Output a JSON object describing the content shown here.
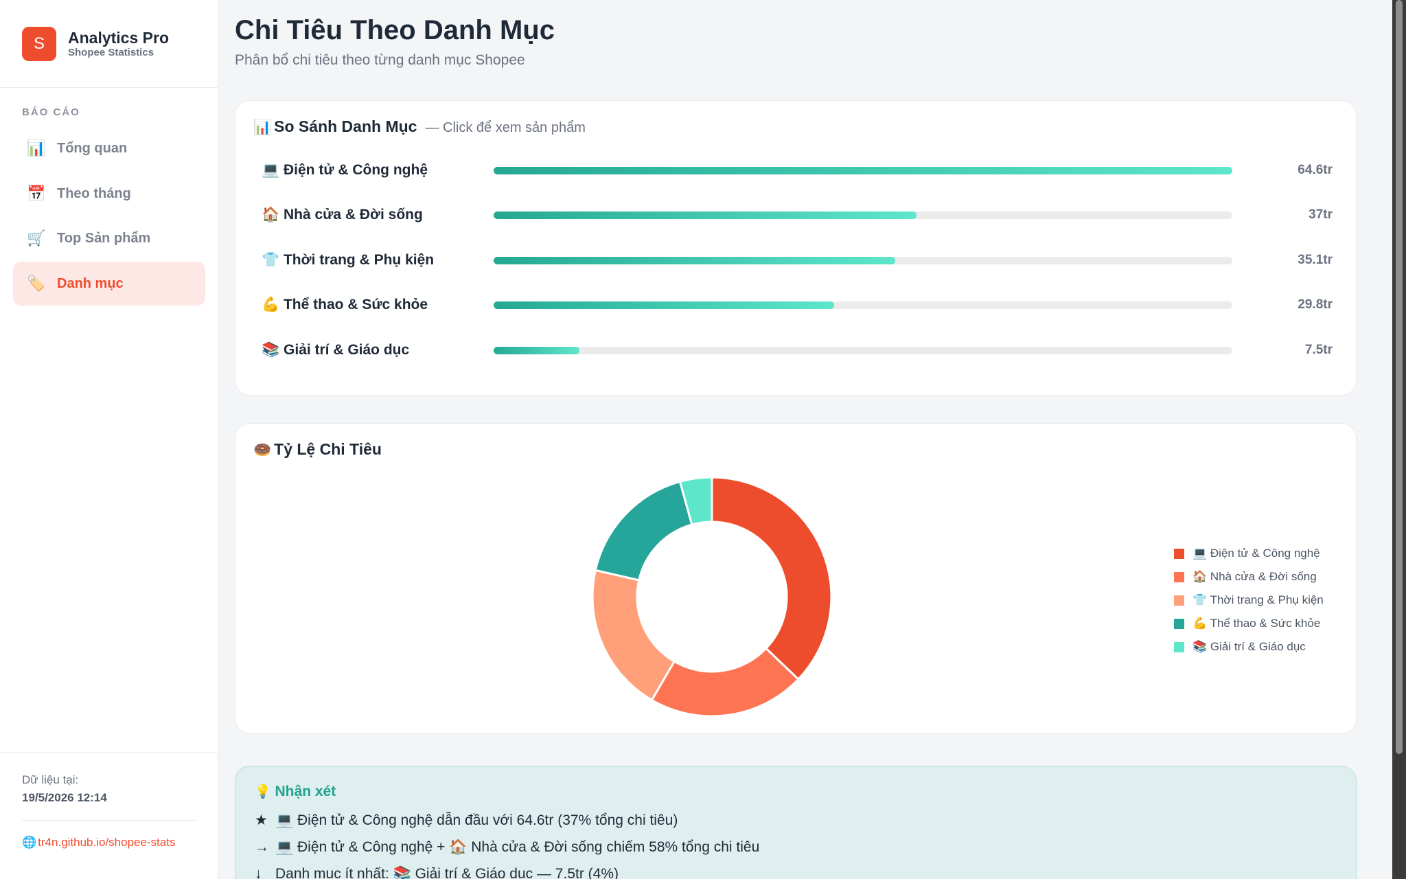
{
  "brand": {
    "logo_letter": "S",
    "title": "Analytics Pro",
    "subtitle": "Shopee Statistics"
  },
  "sidebar": {
    "section_label": "BÁO CÁO",
    "items": [
      {
        "icon": "📊",
        "icon_name": "bar-chart-icon",
        "label": "Tổng quan",
        "active": false
      },
      {
        "icon": "📅",
        "icon_name": "calendar-icon",
        "label": "Theo tháng",
        "active": false
      },
      {
        "icon": "🛒",
        "icon_name": "cart-icon",
        "label": "Top Sản phẩm",
        "active": false
      },
      {
        "icon": "🏷️",
        "icon_name": "tag-icon",
        "label": "Danh mục",
        "active": true
      }
    ],
    "footer": {
      "data_label": "Dữ liệu tại:",
      "data_date": "19/5/2026 12:14",
      "link_icon": "🌐",
      "link_text": "tr4n.github.io/shopee-stats"
    }
  },
  "page": {
    "title": "Chi Tiêu Theo Danh Mục",
    "subtitle": "Phân bổ chi tiêu theo từng danh mục Shopee"
  },
  "compare_card": {
    "icon": "📊",
    "title": "So Sánh Danh Mục",
    "hint": "— Click để xem sản phẩm"
  },
  "donut_card": {
    "icon": "🍩",
    "title": "Tỷ Lệ Chi Tiêu"
  },
  "insight": {
    "icon": "💡",
    "title": "Nhận xét",
    "lines": [
      {
        "mark": "★",
        "text": "💻 Điện tử & Công nghệ dẫn đầu với 64.6tr (37% tổng chi tiêu)"
      },
      {
        "mark": "→",
        "text": "💻 Điện tử & Công nghệ + 🏠 Nhà cửa & Đời sống chiếm 58% tổng chi tiêu"
      },
      {
        "mark": "↓",
        "text": "Danh mục ít nhất: 📚 Giải trí & Giáo dục — 7.5tr (4%)"
      }
    ]
  },
  "colors": {
    "accent": "#ee4d2d",
    "bar_gradient_start": "#24a892",
    "bar_gradient_end": "#5ee6cb",
    "slices": [
      "#ee4d2d",
      "#ff7452",
      "#ffa07a",
      "#26a69a",
      "#5ee6cb"
    ]
  },
  "chart_data": [
    {
      "type": "bar",
      "orientation": "horizontal",
      "categories": [
        "💻 Điện tử & Công nghệ",
        "🏠 Nhà cửa & Đời sống",
        "👕 Thời trang & Phụ kiện",
        "💪 Thể thao & Sức khỏe",
        "📚 Giải trí & Giáo dục"
      ],
      "values": [
        64.6,
        37,
        35.1,
        29.8,
        7.5
      ],
      "value_labels": [
        "64.6tr",
        "37tr",
        "35.1tr",
        "29.8tr",
        "7.5tr"
      ],
      "xlim": [
        0,
        64.6
      ],
      "grid": false
    },
    {
      "type": "pie",
      "donut": true,
      "categories": [
        "💻 Điện tử & Công nghệ",
        "🏠 Nhà cửa & Đời sống",
        "👕 Thời trang & Phụ kiện",
        "💪 Thể thao & Sức khỏe",
        "📚 Giải trí & Giáo dục"
      ],
      "values": [
        64.6,
        37,
        35.1,
        29.8,
        7.5
      ],
      "legend": "right"
    }
  ]
}
